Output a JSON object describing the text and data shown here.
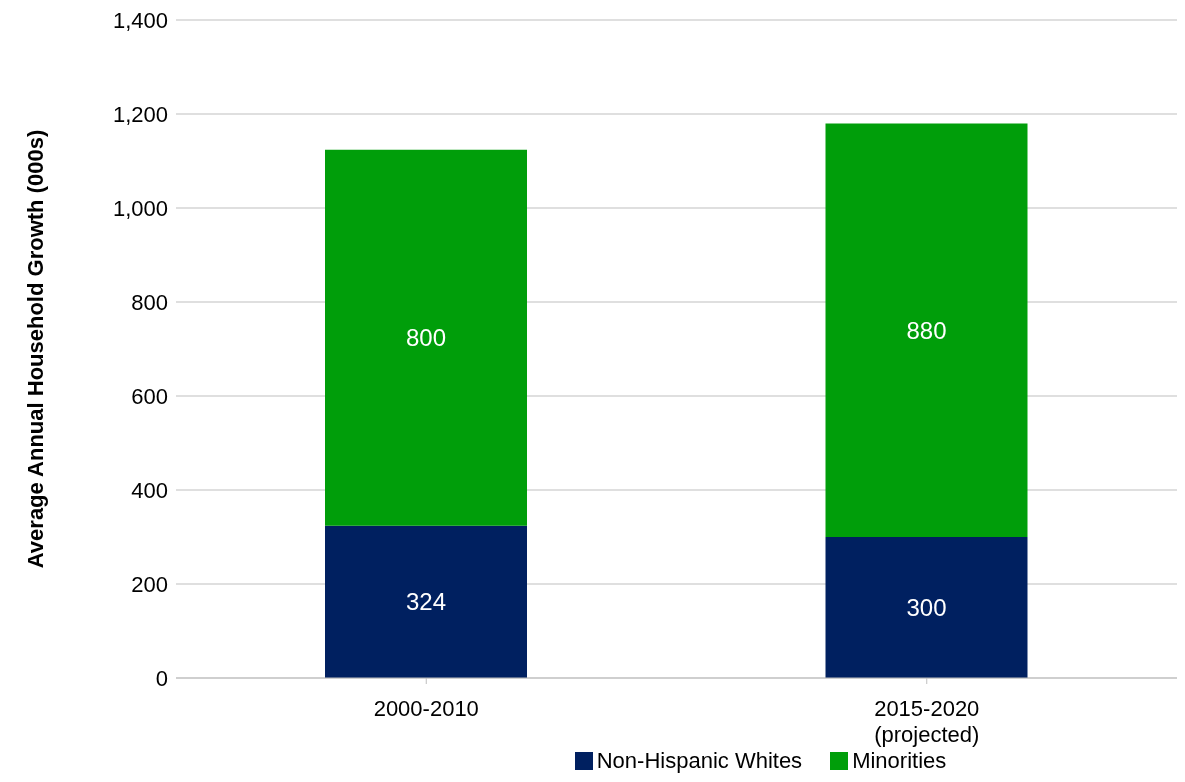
{
  "chart_data": {
    "type": "bar",
    "stacked": true,
    "ylabel": "Average Annual Household Growth (000s)",
    "categories": [
      "2000-2010",
      "2015-2020 (projected)"
    ],
    "series": [
      {
        "name": "Non-Hispanic Whites",
        "color": "#002060",
        "values": [
          324,
          300
        ]
      },
      {
        "name": "Minorities",
        "color": "#009e0a",
        "values": [
          800,
          880
        ]
      }
    ],
    "ylim": [
      0,
      1400
    ],
    "yticks": [
      0,
      200,
      400,
      600,
      800,
      {
        "value": 1000,
        "label": "1,000"
      },
      {
        "value": 1200,
        "label": "1,200"
      },
      {
        "value": 1400,
        "label": "1,400"
      }
    ],
    "grid": "y",
    "legend": "bottom",
    "data_labels": true
  }
}
